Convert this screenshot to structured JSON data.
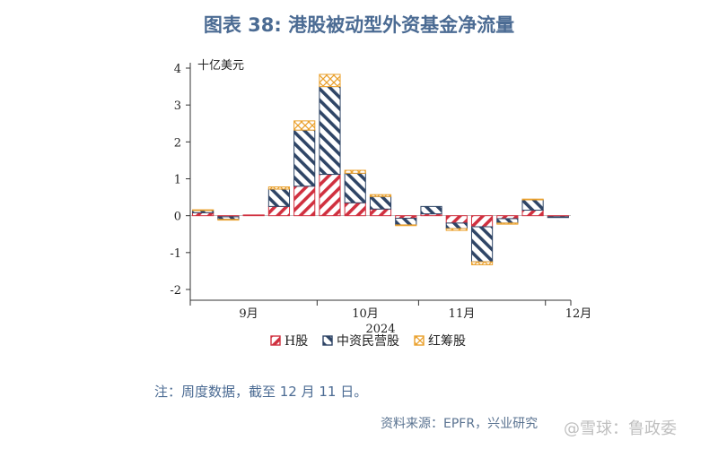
{
  "title": "图表 38: 港股被动型外资基金净流量",
  "note": "注：周度数据，截至 12 月 11 日。",
  "source": "资料来源：EPFR，兴业研究",
  "watermark": "@雪球：鲁政委",
  "chart_data": {
    "type": "bar",
    "stacked": true,
    "unit_label": "十亿美元",
    "xlabel": "2024",
    "ylabel": "",
    "ylim": [
      -2,
      4
    ],
    "yticks": [
      "4",
      "3",
      "2",
      "1",
      "0",
      "-1",
      "-2"
    ],
    "month_labels": [
      "9月",
      "10月",
      "11月",
      "12月"
    ],
    "legend_position": "bottom",
    "series": [
      {
        "name": "H股",
        "color": "#d0303f",
        "hatch": "diagonal-down",
        "values": [
          0.08,
          -0.03,
          0.02,
          0.25,
          0.8,
          1.12,
          0.35,
          0.18,
          -0.07,
          0.05,
          -0.2,
          -0.3,
          -0.08,
          0.15,
          -0.03
        ]
      },
      {
        "name": "中资民营股",
        "color": "#2f4566",
        "hatch": "diagonal-up",
        "values": [
          0.06,
          -0.07,
          0.0,
          0.47,
          1.52,
          2.38,
          0.8,
          0.34,
          -0.18,
          0.2,
          -0.15,
          -0.95,
          -0.12,
          0.28,
          -0.02
        ]
      },
      {
        "name": "红筹股",
        "color": "#eaa12e",
        "hatch": "cross",
        "values": [
          0.02,
          -0.02,
          0.0,
          0.06,
          0.25,
          0.33,
          0.08,
          0.05,
          -0.02,
          0.0,
          -0.05,
          -0.08,
          -0.03,
          0.02,
          0.0
        ]
      }
    ]
  }
}
